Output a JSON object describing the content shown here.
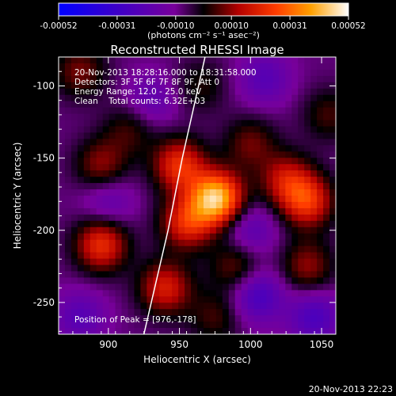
{
  "chart_data": {
    "type": "heatmap",
    "title": "Reconstructed RHESSI Image",
    "xlabel": "Heliocentric X (arcsec)",
    "ylabel": "Heliocentric Y (arcsec)",
    "xlim": [
      865,
      1060
    ],
    "ylim": [
      -272,
      -80
    ],
    "x_ticks": [
      900,
      950,
      1000,
      1050
    ],
    "y_ticks": [
      -100,
      -150,
      -200,
      -250
    ],
    "colorbar": {
      "label": "(photons cm⁻² s⁻¹ asec⁻²)",
      "range": [
        -0.00052,
        0.00052
      ],
      "ticks": [
        "-0.00052",
        "-0.00031",
        "-0.00010",
        "0.00010",
        "0.00031",
        "0.00052"
      ]
    },
    "annotations": [
      "20-Nov-2013 18:28:16.000 to 18:31:58.000",
      "Detectors: 3F 5F 6F 7F 8F 9F, Att 0",
      "Energy Range: 12.0 - 25.0 keV",
      "Clean    Total counts: 6.32E+03"
    ],
    "peak_label": "Position of Peak = [976,-178]",
    "peak": [
      976,
      -178
    ],
    "sources": [
      {
        "x": 976,
        "y": -178,
        "value": 0.00052
      },
      {
        "x": 950,
        "y": -155,
        "value": 0.0003
      },
      {
        "x": 955,
        "y": -195,
        "value": 0.00028
      },
      {
        "x": 940,
        "y": -240,
        "value": 0.00026
      },
      {
        "x": 895,
        "y": -210,
        "value": 0.0003
      },
      {
        "x": 1040,
        "y": -180,
        "value": 0.0003
      },
      {
        "x": 1025,
        "y": -165,
        "value": 0.00022
      },
      {
        "x": 1040,
        "y": -225,
        "value": 0.00018
      },
      {
        "x": 895,
        "y": -155,
        "value": 0.00018
      },
      {
        "x": 990,
        "y": -225,
        "value": 0.00016
      },
      {
        "x": 1000,
        "y": -140,
        "value": 0.00015
      },
      {
        "x": 880,
        "y": -90,
        "value": 0.00016
      },
      {
        "x": 915,
        "y": -130,
        "value": 0.00012
      },
      {
        "x": 965,
        "y": -100,
        "value": 0.0001
      },
      {
        "x": 975,
        "y": -260,
        "value": 0.00012
      },
      {
        "x": 1055,
        "y": -120,
        "value": 0.00012
      },
      {
        "x": 900,
        "y": -180,
        "value": -0.00012
      },
      {
        "x": 1005,
        "y": -245,
        "value": -0.0002
      },
      {
        "x": 1000,
        "y": -200,
        "value": -0.00014
      },
      {
        "x": 930,
        "y": -110,
        "value": -0.00012
      },
      {
        "x": 1045,
        "y": -260,
        "value": -0.00018
      },
      {
        "x": 880,
        "y": -260,
        "value": -0.00014
      },
      {
        "x": 1010,
        "y": -95,
        "value": -0.00014
      }
    ],
    "limb": [
      [
        968,
        -80
      ],
      [
        952,
        -150
      ],
      [
        942,
        -200
      ],
      [
        925,
        -272
      ]
    ]
  },
  "footer": {
    "timestamp": "20-Nov-2013 22:23"
  }
}
